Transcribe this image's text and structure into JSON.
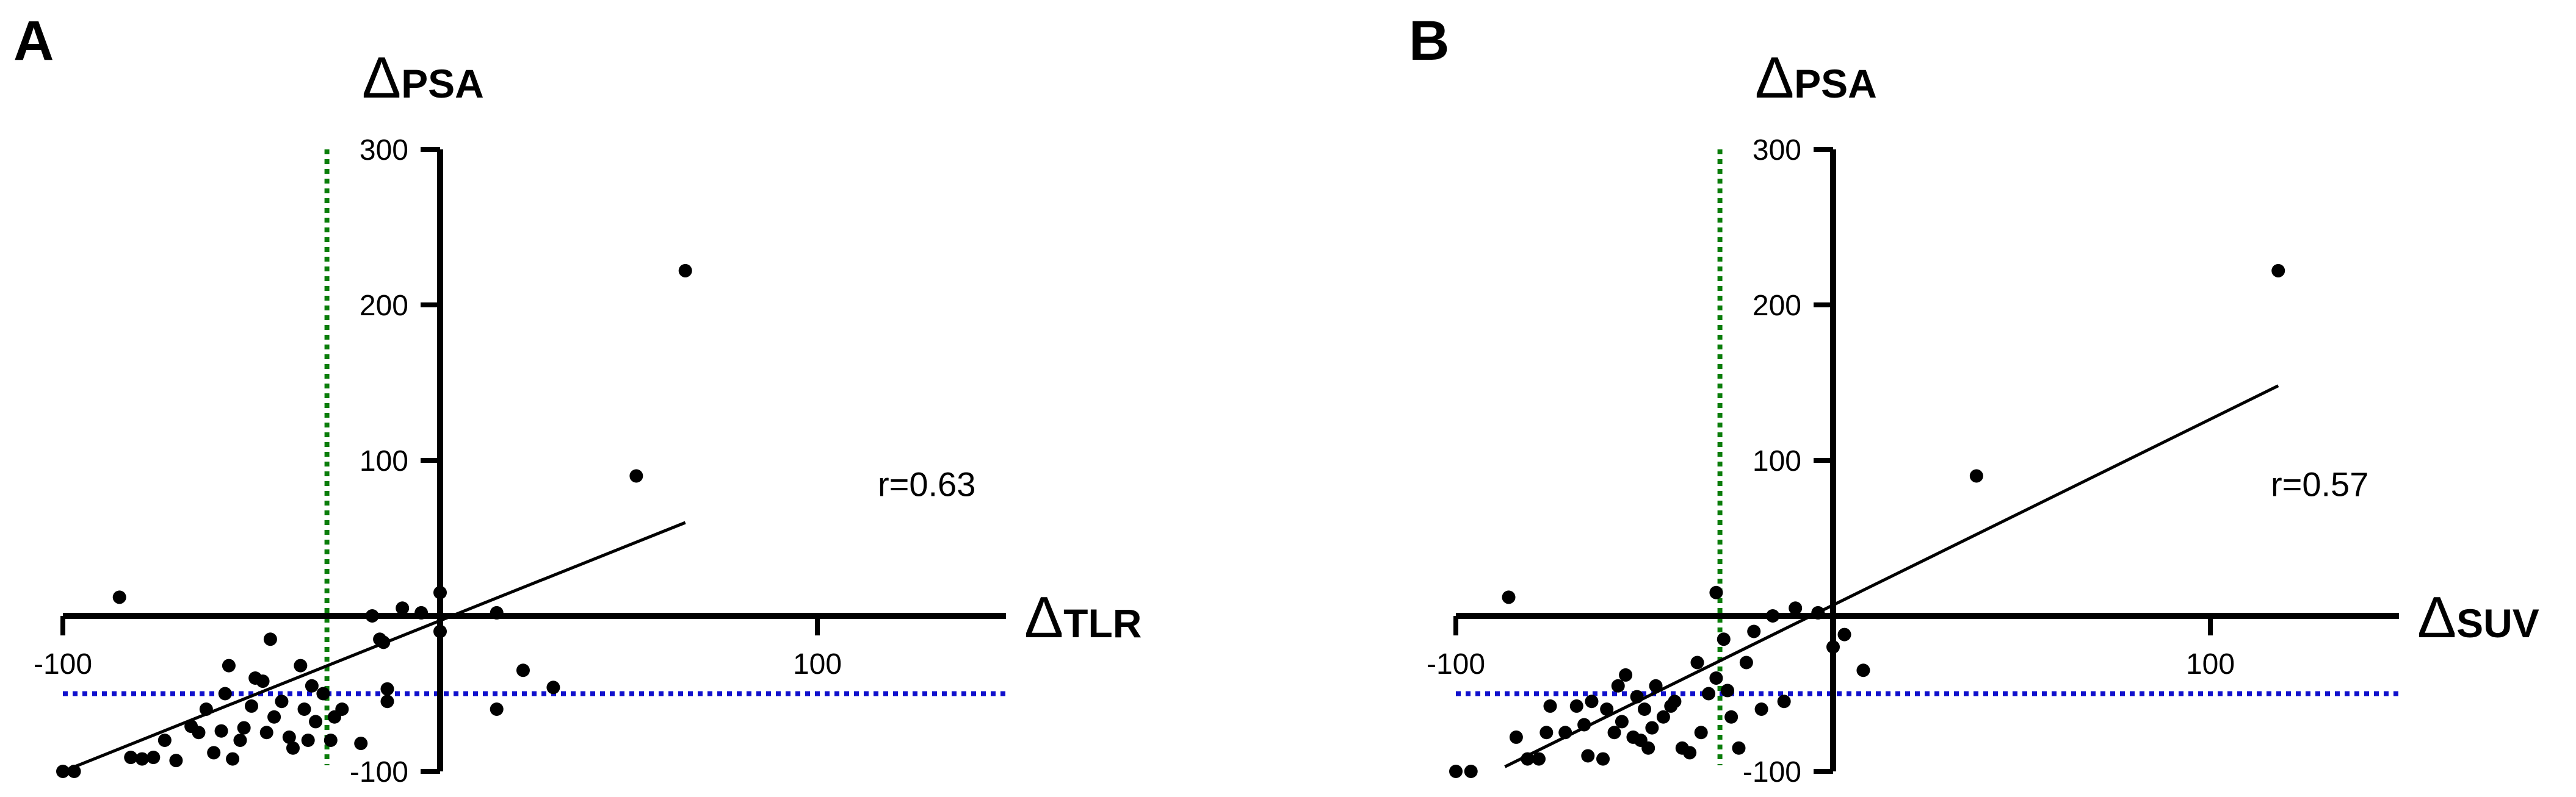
{
  "chart_data": [
    {
      "panel_label": "A",
      "type": "scatter",
      "xlabel": "TLR",
      "ylabel": "PSA",
      "axis_symbol": "Δ",
      "xlim": [
        -100,
        150
      ],
      "ylim": [
        -100,
        300
      ],
      "x_ticks": [
        -100,
        100
      ],
      "y_ticks": [
        -100,
        100,
        200,
        300
      ],
      "annotation": "r=0.63",
      "reference_lines": {
        "vertical_x": -30,
        "horizontal_y": -50,
        "vertical_color": "#0a7d0a",
        "horizontal_color": "#1010cc"
      },
      "regression": {
        "x": [
          -100,
          65
        ],
        "y": [
          -100,
          60
        ]
      },
      "points": [
        {
          "x": -100,
          "y": -100
        },
        {
          "x": -97,
          "y": -100
        },
        {
          "x": -85,
          "y": 12
        },
        {
          "x": -82,
          "y": -91
        },
        {
          "x": -79,
          "y": -92
        },
        {
          "x": -76,
          "y": -91
        },
        {
          "x": -73,
          "y": -80
        },
        {
          "x": -70,
          "y": -93
        },
        {
          "x": -66,
          "y": -71
        },
        {
          "x": -64,
          "y": -75
        },
        {
          "x": -62,
          "y": -60
        },
        {
          "x": -60,
          "y": -88
        },
        {
          "x": -58,
          "y": -74
        },
        {
          "x": -57,
          "y": -50
        },
        {
          "x": -56,
          "y": -32
        },
        {
          "x": -55,
          "y": -92
        },
        {
          "x": -53,
          "y": -80
        },
        {
          "x": -52,
          "y": -72
        },
        {
          "x": -50,
          "y": -58
        },
        {
          "x": -49,
          "y": -40
        },
        {
          "x": -47,
          "y": -42
        },
        {
          "x": -46,
          "y": -75
        },
        {
          "x": -45,
          "y": -15
        },
        {
          "x": -44,
          "y": -65
        },
        {
          "x": -42,
          "y": -55
        },
        {
          "x": -40,
          "y": -78
        },
        {
          "x": -39,
          "y": -85
        },
        {
          "x": -37,
          "y": -32
        },
        {
          "x": -36,
          "y": -60
        },
        {
          "x": -35,
          "y": -80
        },
        {
          "x": -34,
          "y": -45
        },
        {
          "x": -33,
          "y": -68
        },
        {
          "x": -31,
          "y": -50
        },
        {
          "x": -29,
          "y": -80
        },
        {
          "x": -28,
          "y": -65
        },
        {
          "x": -26,
          "y": -60
        },
        {
          "x": -21,
          "y": -82
        },
        {
          "x": -18,
          "y": 0
        },
        {
          "x": -16,
          "y": -15
        },
        {
          "x": -15,
          "y": -17
        },
        {
          "x": -14,
          "y": -47
        },
        {
          "x": -14,
          "y": -55
        },
        {
          "x": -10,
          "y": 5
        },
        {
          "x": -5,
          "y": 2
        },
        {
          "x": 0,
          "y": 15
        },
        {
          "x": 0,
          "y": -10
        },
        {
          "x": 15,
          "y": 2
        },
        {
          "x": 15,
          "y": -60
        },
        {
          "x": 22,
          "y": -35
        },
        {
          "x": 30,
          "y": -46
        },
        {
          "x": 52,
          "y": 90
        },
        {
          "x": 65,
          "y": 222
        }
      ]
    },
    {
      "panel_label": "B",
      "type": "scatter",
      "xlabel": "SUV",
      "ylabel": "PSA",
      "axis_symbol": "Δ",
      "xlim": [
        -100,
        150
      ],
      "ylim": [
        -100,
        300
      ],
      "x_ticks": [
        -100,
        100
      ],
      "y_ticks": [
        -100,
        100,
        200,
        300
      ],
      "annotation": "r=0.57",
      "reference_lines": {
        "vertical_x": -30,
        "horizontal_y": -50,
        "vertical_color": "#0a7d0a",
        "horizontal_color": "#1010cc"
      },
      "regression": {
        "x": [
          -87,
          118
        ],
        "y": [
          -97,
          148
        ]
      },
      "points": [
        {
          "x": -100,
          "y": -100
        },
        {
          "x": -96,
          "y": -100
        },
        {
          "x": -86,
          "y": 12
        },
        {
          "x": -84,
          "y": -78
        },
        {
          "x": -81,
          "y": -92
        },
        {
          "x": -78,
          "y": -92
        },
        {
          "x": -76,
          "y": -75
        },
        {
          "x": -75,
          "y": -58
        },
        {
          "x": -71,
          "y": -75
        },
        {
          "x": -68,
          "y": -58
        },
        {
          "x": -66,
          "y": -70
        },
        {
          "x": -65,
          "y": -90
        },
        {
          "x": -64,
          "y": -55
        },
        {
          "x": -61,
          "y": -92
        },
        {
          "x": -60,
          "y": -60
        },
        {
          "x": -58,
          "y": -75
        },
        {
          "x": -57,
          "y": -45
        },
        {
          "x": -56,
          "y": -68
        },
        {
          "x": -55,
          "y": -38
        },
        {
          "x": -53,
          "y": -78
        },
        {
          "x": -52,
          "y": -52
        },
        {
          "x": -51,
          "y": -80
        },
        {
          "x": -50,
          "y": -60
        },
        {
          "x": -49,
          "y": -85
        },
        {
          "x": -48,
          "y": -72
        },
        {
          "x": -47,
          "y": -45
        },
        {
          "x": -45,
          "y": -65
        },
        {
          "x": -43,
          "y": -58
        },
        {
          "x": -42,
          "y": -55
        },
        {
          "x": -40,
          "y": -85
        },
        {
          "x": -38,
          "y": -88
        },
        {
          "x": -36,
          "y": -30
        },
        {
          "x": -35,
          "y": -75
        },
        {
          "x": -33,
          "y": -50
        },
        {
          "x": -31,
          "y": 15
        },
        {
          "x": -31,
          "y": -40
        },
        {
          "x": -29,
          "y": -15
        },
        {
          "x": -28,
          "y": -48
        },
        {
          "x": -27,
          "y": -65
        },
        {
          "x": -25,
          "y": -85
        },
        {
          "x": -23,
          "y": -30
        },
        {
          "x": -21,
          "y": -10
        },
        {
          "x": -19,
          "y": -60
        },
        {
          "x": -16,
          "y": 0
        },
        {
          "x": -13,
          "y": -55
        },
        {
          "x": -10,
          "y": 5
        },
        {
          "x": -4,
          "y": 2
        },
        {
          "x": 0,
          "y": -20
        },
        {
          "x": 3,
          "y": -12
        },
        {
          "x": 8,
          "y": -35
        },
        {
          "x": 38,
          "y": 90
        },
        {
          "x": 118,
          "y": 222
        }
      ]
    }
  ]
}
